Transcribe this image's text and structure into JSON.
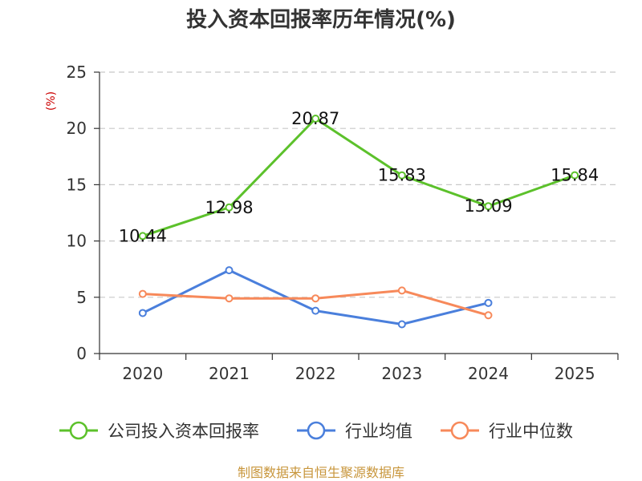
{
  "chart_data": {
    "type": "line",
    "title": "投入资本回报率历年情况(%)",
    "ylabel": "(%)",
    "xlabel": "",
    "categories": [
      "2020",
      "2021",
      "2022",
      "2023",
      "2024",
      "2025"
    ],
    "ylim": [
      0,
      25
    ],
    "yticks": [
      0,
      5,
      10,
      15,
      20,
      25
    ],
    "grid": true,
    "legend_position": "bottom",
    "series": [
      {
        "name": "公司投入资本回报率",
        "color": "#5cc12b",
        "values": [
          10.44,
          12.98,
          20.87,
          15.83,
          13.09,
          15.84
        ],
        "labels": [
          "10.44",
          "12.98",
          "20.87",
          "15.83",
          "13.09",
          "15.84"
        ]
      },
      {
        "name": "行业均值",
        "color": "#4a7fdc",
        "values": [
          3.6,
          7.4,
          3.8,
          2.6,
          4.5,
          null
        ]
      },
      {
        "name": "行业中位数",
        "color": "#f7895a",
        "values": [
          5.3,
          4.9,
          4.9,
          5.6,
          3.4,
          null
        ]
      }
    ],
    "source": "制图数据来自恒生聚源数据库"
  }
}
